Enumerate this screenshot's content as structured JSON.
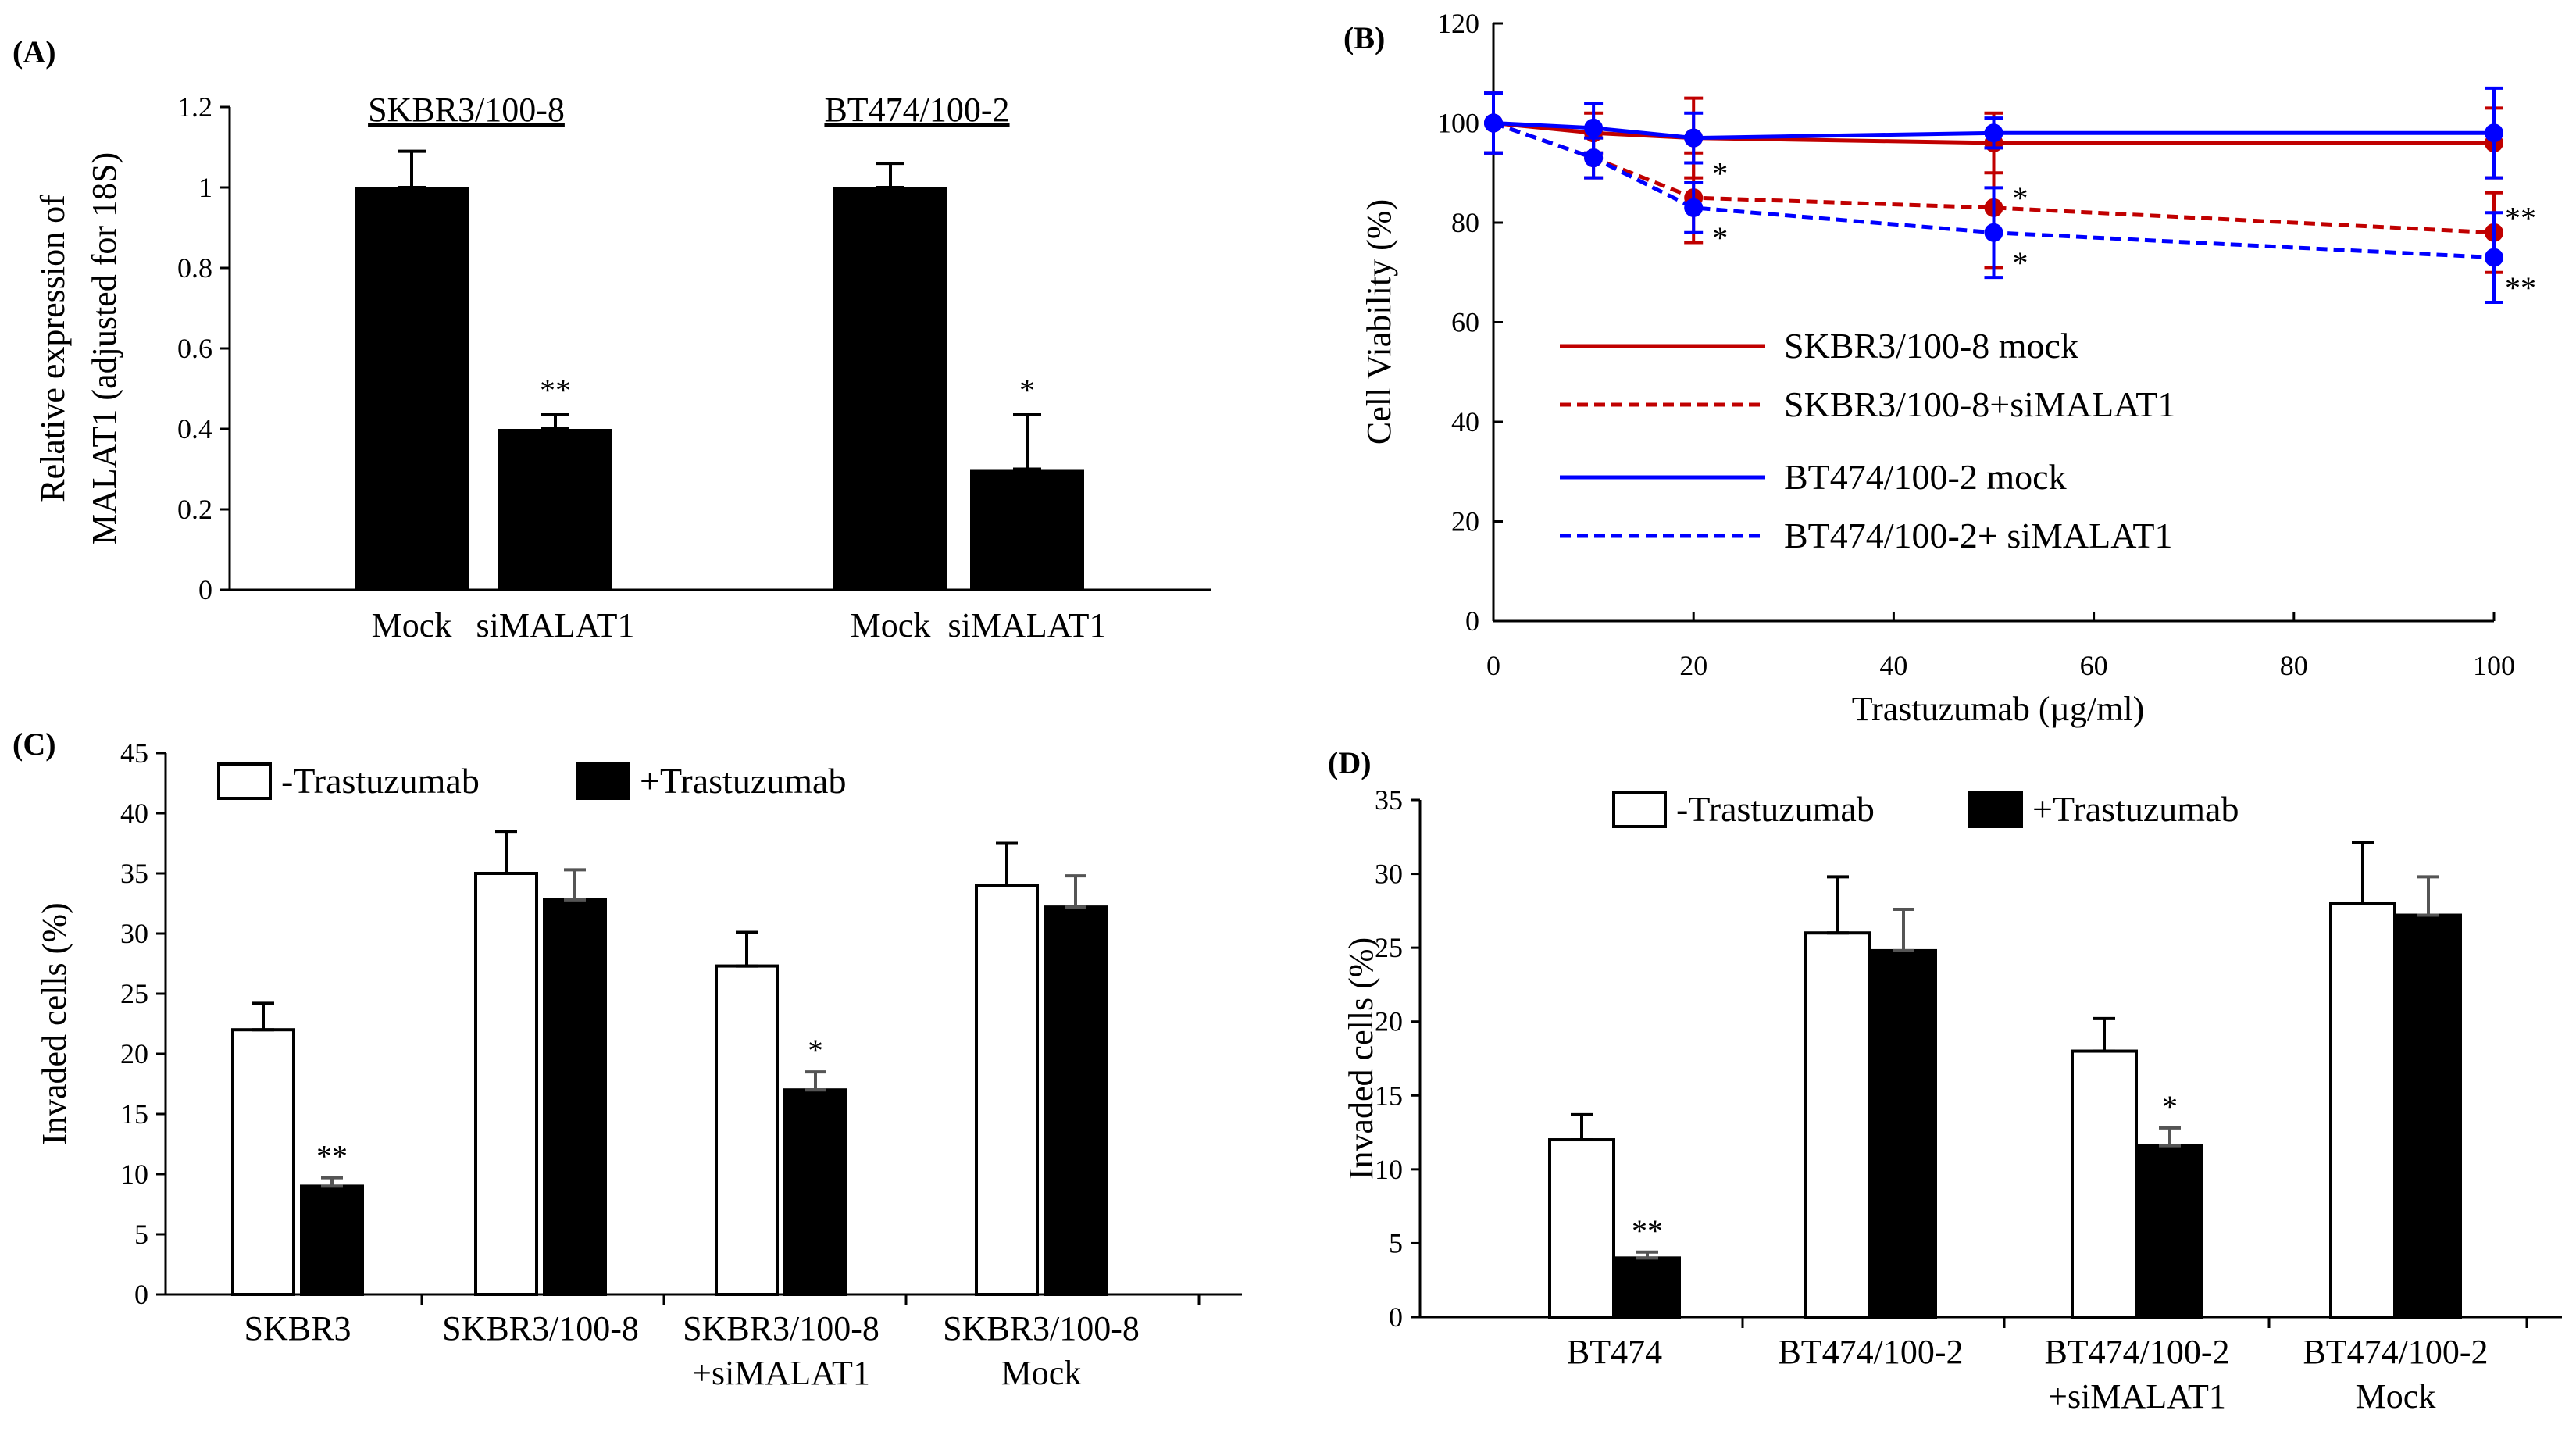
{
  "chart_data": [
    {
      "panel": "(A)",
      "type": "bar",
      "ylabel_lines": [
        "Relative expression of",
        "MALAT1  (adjusted for 18S)"
      ],
      "ylim": [
        0,
        1.2
      ],
      "yticks": [
        "0",
        "0.2",
        "0.4",
        "0.6",
        "0.8",
        "1",
        "1.2"
      ],
      "groups": [
        {
          "title": "SKBR3/100-8",
          "categories": [
            "Mock",
            "siMALAT1"
          ],
          "values": [
            1.0,
            0.4
          ],
          "errors": [
            0.09,
            0.035
          ],
          "sig": [
            "",
            "**"
          ]
        },
        {
          "title": "BT474/100-2",
          "categories": [
            "Mock",
            "siMALAT1"
          ],
          "values": [
            1.0,
            0.3
          ],
          "errors": [
            0.06,
            0.135
          ],
          "sig": [
            "",
            "*"
          ]
        }
      ],
      "bar_color": "#000000"
    },
    {
      "panel": "(B)",
      "type": "line",
      "xlabel": "Trastuzumab  (µg/ml)",
      "ylabel": "Cell Viability (%)",
      "xlim": [
        0,
        100
      ],
      "ylim": [
        0,
        120
      ],
      "xticks": [
        "0",
        "20",
        "40",
        "60",
        "80",
        "100"
      ],
      "yticks": [
        "0",
        "20",
        "40",
        "60",
        "80",
        "100",
        "120"
      ],
      "x": [
        0,
        10,
        20,
        50,
        100
      ],
      "series": [
        {
          "name": "SKBR3/100-8 mock",
          "color": "#c00000",
          "dashed": false,
          "values": [
            100,
            98,
            97,
            96,
            96
          ],
          "errors": [
            6,
            4,
            8,
            6,
            7
          ]
        },
        {
          "name": "SKBR3/100-8+siMALAT1",
          "color": "#c00000",
          "dashed": true,
          "values": [
            100,
            93,
            85,
            83,
            78
          ],
          "errors": [
            6,
            4,
            9,
            12,
            8
          ]
        },
        {
          "name": "BT474/100-2 mock",
          "color": "#0000ff",
          "dashed": false,
          "values": [
            100,
            99,
            97,
            98,
            98
          ],
          "errors": [
            6,
            5,
            5,
            3,
            9
          ]
        },
        {
          "name": "BT474/100-2+ siMALAT1",
          "color": "#0000ff",
          "dashed": true,
          "values": [
            100,
            93,
            83,
            78,
            73
          ],
          "errors": [
            6,
            4,
            5,
            9,
            9
          ]
        }
      ],
      "annotations": [
        {
          "x": 20,
          "y": 90,
          "text": "*"
        },
        {
          "x": 20,
          "y": 77,
          "text": "*"
        },
        {
          "x": 50,
          "y": 85,
          "text": "*"
        },
        {
          "x": 50,
          "y": 72,
          "text": "*"
        },
        {
          "x": 100,
          "y": 81,
          "text": "**"
        },
        {
          "x": 100,
          "y": 67,
          "text": "**"
        }
      ]
    },
    {
      "panel": "(C)",
      "type": "bar",
      "ylabel": "Invaded  cells (%)",
      "ylim": [
        0,
        45
      ],
      "yticks": [
        "0",
        "5",
        "10",
        "15",
        "20",
        "25",
        "30",
        "35",
        "40",
        "45"
      ],
      "legend": [
        "-Trastuzumab",
        "+Trastuzumab"
      ],
      "categories": [
        [
          "SKBR3"
        ],
        [
          "SKBR3/100-8"
        ],
        [
          "SKBR3/100-8",
          "+siMALAT1"
        ],
        [
          "SKBR3/100-8",
          "Mock"
        ]
      ],
      "series": [
        {
          "name": "-Trastuzumab",
          "fill": "#ffffff",
          "values": [
            22,
            35,
            27.3,
            34
          ],
          "errors": [
            2.2,
            3.5,
            2.8,
            3.5
          ],
          "sig": [
            "",
            "",
            "",
            ""
          ]
        },
        {
          "name": "+Trastuzumab",
          "fill": "#000000",
          "values": [
            9,
            32.8,
            17,
            32.2
          ],
          "errors": [
            0.7,
            2.5,
            1.5,
            2.6
          ],
          "sig": [
            "**",
            "",
            "*",
            ""
          ]
        }
      ]
    },
    {
      "panel": "(D)",
      "type": "bar",
      "ylabel": "Invaded  cells (%)",
      "ylim": [
        0,
        35
      ],
      "yticks": [
        "0",
        "5",
        "10",
        "15",
        "20",
        "25",
        "30",
        "35"
      ],
      "legend": [
        "-Trastuzumab",
        "+Trastuzumab"
      ],
      "categories": [
        [
          "BT474"
        ],
        [
          "BT474/100-2"
        ],
        [
          "BT474/100-2",
          "+siMALAT1"
        ],
        [
          "BT474/100-2",
          "Mock"
        ]
      ],
      "series": [
        {
          "name": "-Trastuzumab",
          "fill": "#ffffff",
          "values": [
            12,
            26,
            18,
            28
          ],
          "errors": [
            1.7,
            3.8,
            2.2,
            4.1
          ],
          "sig": [
            "",
            "",
            "",
            ""
          ]
        },
        {
          "name": "+Trastuzumab",
          "fill": "#000000",
          "values": [
            4,
            24.8,
            11.6,
            27.2
          ],
          "errors": [
            0.4,
            2.8,
            1.2,
            2.6
          ],
          "sig": [
            "**",
            "",
            "*",
            ""
          ]
        }
      ]
    }
  ]
}
